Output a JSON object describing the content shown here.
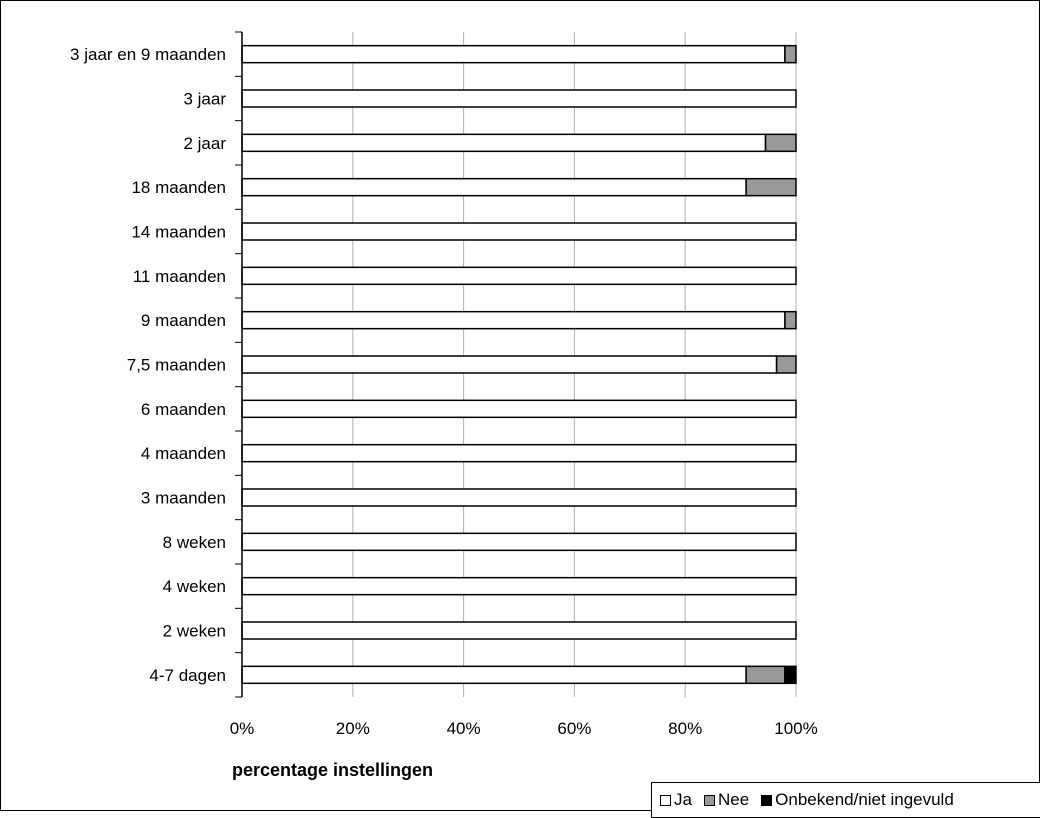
{
  "chart_data": {
    "type": "bar",
    "orientation": "horizontal",
    "stacked": true,
    "percent_stacked": true,
    "categories": [
      "4-7 dagen",
      "2 weken",
      "4 weken",
      "8 weken",
      "3 maanden",
      "4 maanden",
      "6 maanden",
      "7,5 maanden",
      "9 maanden",
      "11 maanden",
      "14 maanden",
      "18 maanden",
      "2 jaar",
      "3 jaar",
      "3 jaar en 9 maanden"
    ],
    "series": [
      {
        "name": "Ja",
        "values": [
          91,
          100,
          100,
          100,
          100,
          100,
          100,
          96.5,
          98,
          100,
          100,
          91,
          94.5,
          100,
          98
        ],
        "color": "#ffffff"
      },
      {
        "name": "Nee",
        "values": [
          7,
          0,
          0,
          0,
          0,
          0,
          0,
          3.5,
          2,
          0,
          0,
          9,
          5.5,
          0,
          2
        ],
        "color": "#999999"
      },
      {
        "name": "Onbekend/niet ingevuld",
        "values": [
          2,
          0,
          0,
          0,
          0,
          0,
          0,
          0,
          0,
          0,
          0,
          0,
          0,
          0,
          0
        ],
        "color": "#000000"
      }
    ],
    "xlabel": "percentage instellingen",
    "ylabel": "",
    "xlim": [
      0,
      100
    ],
    "xticks": [
      "0%",
      "20%",
      "40%",
      "60%",
      "80%",
      "100%"
    ],
    "grid": "vertical",
    "legend_position": "bottom-right"
  }
}
